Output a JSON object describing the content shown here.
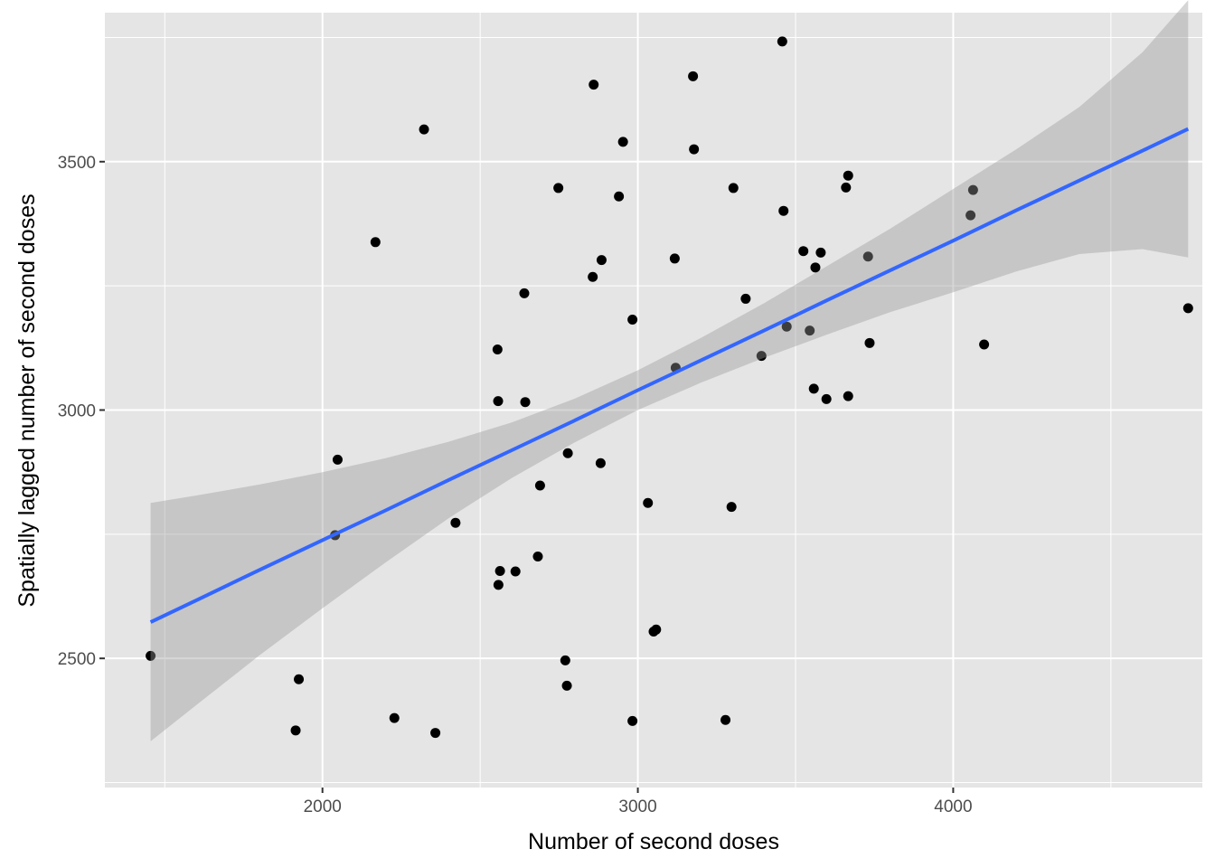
{
  "chart_data": {
    "type": "scatter",
    "xlabel": "Number of second doses",
    "ylabel": "Spatially lagged number of second doses",
    "xlim": [
      1310,
      4790
    ],
    "ylim": [
      2240,
      3800
    ],
    "x_ticks": [
      2000,
      3000,
      4000
    ],
    "y_ticks": [
      2500,
      3000,
      3500
    ],
    "x_minor": [
      1500,
      2500,
      3500,
      4500
    ],
    "y_minor": [
      2250,
      2750,
      3250,
      3750
    ],
    "grid": true,
    "points": [
      [
        1455,
        2505
      ],
      [
        1915,
        2355
      ],
      [
        1925,
        2458
      ],
      [
        2040,
        2748
      ],
      [
        2048,
        2900
      ],
      [
        2168,
        3338
      ],
      [
        2228,
        2380
      ],
      [
        2322,
        3565
      ],
      [
        2358,
        2350
      ],
      [
        2422,
        2773
      ],
      [
        2555,
        3122
      ],
      [
        2557,
        3018
      ],
      [
        2558,
        2648
      ],
      [
        2563,
        2676
      ],
      [
        2612,
        2675
      ],
      [
        2640,
        3235
      ],
      [
        2643,
        3016
      ],
      [
        2683,
        2705
      ],
      [
        2690,
        2848
      ],
      [
        2748,
        3447
      ],
      [
        2770,
        2496
      ],
      [
        2775,
        2445
      ],
      [
        2778,
        2913
      ],
      [
        2857,
        3268
      ],
      [
        2860,
        3655
      ],
      [
        2882,
        2893
      ],
      [
        2885,
        3302
      ],
      [
        2940,
        3430
      ],
      [
        2953,
        3540
      ],
      [
        2983,
        3182
      ],
      [
        2983,
        2374
      ],
      [
        3032,
        2813
      ],
      [
        3050,
        2554
      ],
      [
        3058,
        2558
      ],
      [
        3117,
        3305
      ],
      [
        3120,
        3085
      ],
      [
        3175,
        3672
      ],
      [
        3178,
        3525
      ],
      [
        3278,
        2376
      ],
      [
        3297,
        2805
      ],
      [
        3303,
        3447
      ],
      [
        3342,
        3224
      ],
      [
        3392,
        3109
      ],
      [
        3458,
        3742
      ],
      [
        3462,
        3401
      ],
      [
        3472,
        3168
      ],
      [
        3525,
        3320
      ],
      [
        3545,
        3160
      ],
      [
        3558,
        3043
      ],
      [
        3563,
        3287
      ],
      [
        3580,
        3317
      ],
      [
        3598,
        3022
      ],
      [
        3660,
        3448
      ],
      [
        3667,
        3472
      ],
      [
        3667,
        3028
      ],
      [
        3730,
        3309
      ],
      [
        3735,
        3135
      ],
      [
        4055,
        3392
      ],
      [
        4063,
        3443
      ],
      [
        4098,
        3132
      ],
      [
        4745,
        3205
      ]
    ],
    "fit": {
      "x": [
        1455,
        1600,
        1800,
        2000,
        2200,
        2400,
        2600,
        2800,
        3000,
        3200,
        3400,
        3600,
        3800,
        4000,
        4200,
        4400,
        4600,
        4745
      ],
      "y": [
        2573,
        2617,
        2678,
        2738,
        2798,
        2859,
        2919,
        2979,
        3040,
        3100,
        3160,
        3221,
        3281,
        3341,
        3402,
        3462,
        3522,
        3566
      ],
      "upper": [
        2813,
        2828,
        2850,
        2875,
        2903,
        2936,
        2975,
        3023,
        3080,
        3145,
        3215,
        3290,
        3365,
        3445,
        3525,
        3610,
        3720,
        3825
      ],
      "lower": [
        2333,
        2406,
        2506,
        2601,
        2693,
        2782,
        2863,
        2935,
        3000,
        3055,
        3105,
        3152,
        3197,
        3237,
        3279,
        3314,
        3324,
        3307
      ]
    },
    "colors": {
      "panel": "#e5e5e5",
      "grid": "#ffffff",
      "points": "#000000",
      "fit_line": "#3366ff",
      "ribbon": "#999999"
    }
  }
}
